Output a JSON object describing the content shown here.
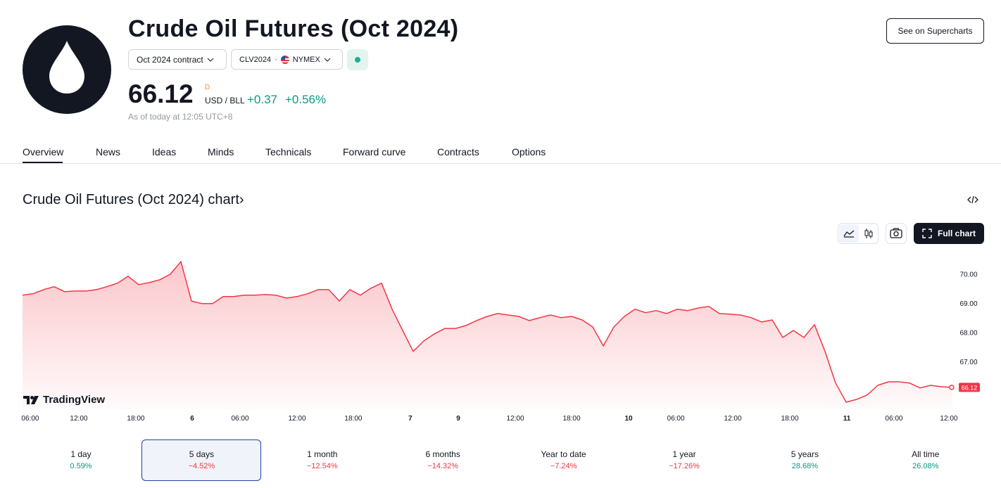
{
  "header": {
    "title": "Crude Oil Futures (Oct 2024)",
    "contract": "Oct 2024 contract",
    "symbol": "CLV2024",
    "separator": "·",
    "exchange": "NYMEX",
    "price": "66.12",
    "price_flag": "D",
    "unit": "USD / BLL",
    "change": "+0.37",
    "change_percent": "+0.56%",
    "as_of": "As of today at 12:05 UTC+8",
    "supercharts_button": "See on Supercharts"
  },
  "tabs": [
    "Overview",
    "News",
    "Ideas",
    "Minds",
    "Technicals",
    "Forward curve",
    "Contracts",
    "Options"
  ],
  "chart_section": {
    "title": "Crude Oil Futures (Oct 2024) chart",
    "title_arrow": "›",
    "full_chart_button": "Full chart",
    "watermark": "TradingView"
  },
  "chart_data": {
    "type": "area",
    "color": "#f23645",
    "values": [
      69.28,
      69.33,
      69.47,
      69.57,
      69.4,
      69.42,
      69.42,
      69.47,
      69.57,
      69.69,
      69.93,
      69.64,
      69.71,
      69.81,
      70.0,
      70.43,
      69.08,
      68.99,
      68.99,
      69.23,
      69.23,
      69.28,
      69.28,
      69.3,
      69.28,
      69.18,
      69.23,
      69.33,
      69.47,
      69.47,
      69.08,
      69.47,
      69.28,
      69.52,
      69.69,
      68.8,
      68.07,
      67.35,
      67.71,
      67.95,
      68.14,
      68.14,
      68.24,
      68.41,
      68.55,
      68.65,
      68.6,
      68.55,
      68.41,
      68.51,
      68.6,
      68.51,
      68.55,
      68.43,
      68.19,
      67.54,
      68.19,
      68.55,
      68.8,
      68.68,
      68.75,
      68.65,
      68.8,
      68.75,
      68.84,
      68.89,
      68.65,
      68.63,
      68.6,
      68.51,
      68.36,
      68.43,
      67.83,
      68.07,
      67.83,
      68.27,
      67.35,
      66.27,
      65.61,
      65.71,
      65.86,
      66.19,
      66.31,
      66.31,
      66.27,
      66.1,
      66.19,
      66.14,
      66.12
    ],
    "xlim": [
      0,
      88
    ],
    "xticks": [
      {
        "value": 0.73,
        "label": "06:00"
      },
      {
        "value": 5.33,
        "label": "12:00"
      },
      {
        "value": 10.73,
        "label": "18:00"
      },
      {
        "value": 16.07,
        "label": "6"
      },
      {
        "value": 20.6,
        "label": "06:00"
      },
      {
        "value": 26,
        "label": "12:00"
      },
      {
        "value": 31.33,
        "label": "18:00"
      },
      {
        "value": 36.73,
        "label": "7"
      },
      {
        "value": 41.27,
        "label": "9"
      },
      {
        "value": 46.67,
        "label": "12:00"
      },
      {
        "value": 52,
        "label": "18:00"
      },
      {
        "value": 57.4,
        "label": "10"
      },
      {
        "value": 61.87,
        "label": "06:00"
      },
      {
        "value": 67.27,
        "label": "12:00"
      },
      {
        "value": 72.67,
        "label": "18:00"
      },
      {
        "value": 78.07,
        "label": "11"
      },
      {
        "value": 82.53,
        "label": "06:00"
      },
      {
        "value": 87.73,
        "label": "12:00"
      }
    ],
    "ylim": [
      65.37,
      70.72
    ],
    "yticks": [
      {
        "value": 67,
        "label": "67.00"
      },
      {
        "value": 68,
        "label": "68.00"
      },
      {
        "value": 69,
        "label": "69.00"
      },
      {
        "value": 70,
        "label": "70.00"
      }
    ]
  },
  "periods": [
    {
      "label": "1 day",
      "change": "0.59%"
    },
    {
      "label": "5 days",
      "change": "−4.52%"
    },
    {
      "label": "1 month",
      "change": "−12.54%"
    },
    {
      "label": "6 months",
      "change": "−14.32%"
    },
    {
      "label": "Year to date",
      "change": "−7.24%"
    },
    {
      "label": "1 year",
      "change": "−17.26%"
    },
    {
      "label": "5 years",
      "change": "28.68%"
    },
    {
      "label": "All time",
      "change": "26.08%"
    }
  ]
}
